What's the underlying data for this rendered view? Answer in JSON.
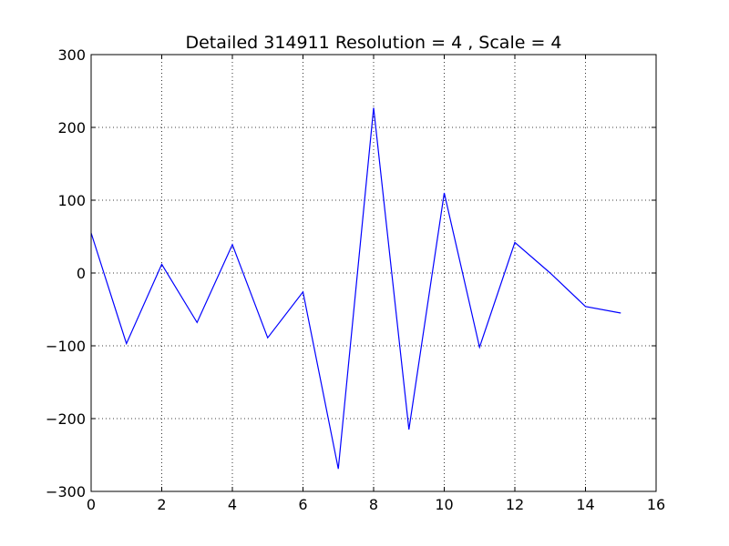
{
  "chart_data": {
    "type": "line",
    "title": "Detailed 314911 Resolution = 4 , Scale = 4",
    "xlabel": "",
    "ylabel": "",
    "xlim": [
      0,
      16
    ],
    "ylim": [
      -300,
      300
    ],
    "grid": true,
    "x_ticks": [
      0,
      2,
      4,
      6,
      8,
      10,
      12,
      14,
      16
    ],
    "y_ticks": [
      300,
      200,
      100,
      0,
      -100,
      -200,
      -300
    ],
    "x_tick_labels": [
      "0",
      "2",
      "4",
      "6",
      "8",
      "10",
      "12",
      "14",
      "16"
    ],
    "y_tick_labels": [
      "300",
      "200",
      "100",
      "0",
      "−100",
      "−200",
      "−300"
    ],
    "series": [
      {
        "color": "#0000ff",
        "x": [
          0,
          1,
          2,
          3,
          4,
          5,
          6,
          7,
          8,
          9,
          10,
          11,
          12,
          13,
          14,
          15
        ],
        "y": [
          55,
          -97,
          12,
          -68,
          39,
          -89,
          -26,
          -269,
          227,
          -215,
          110,
          -102,
          42,
          0,
          -46,
          -55
        ]
      }
    ]
  }
}
